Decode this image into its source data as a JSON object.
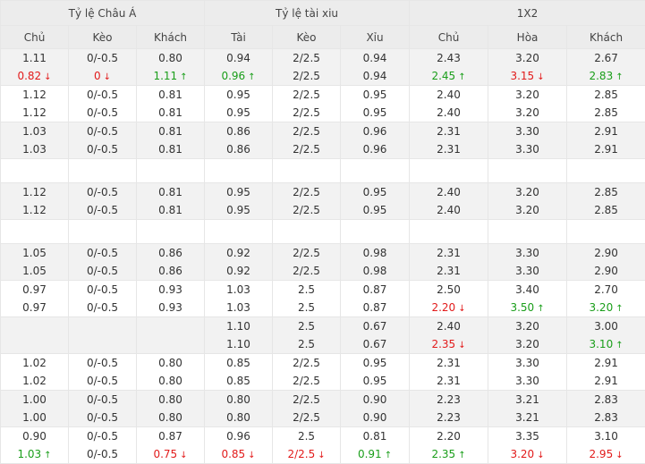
{
  "headers": {
    "group1": "Tỷ lệ Châu Á",
    "group2": "Tỷ lệ tài xiu",
    "group3": "1X2",
    "columns": [
      "Chủ",
      "Kèo",
      "Khách",
      "Tài",
      "Kèo",
      "Xỉu",
      "Chủ",
      "Hòa",
      "Khách"
    ]
  },
  "colors": {
    "up": "#1a9e1a",
    "down": "#e21b1b",
    "row_alt": "#f2f2f2"
  },
  "icons": {
    "up": "arrow-up-icon",
    "down": "arrow-down-icon"
  },
  "rows": [
    {
      "type": "data",
      "bg": "gray",
      "cells": [
        [
          {
            "v": "1.11"
          },
          {
            "v": "0.82",
            "d": "down"
          }
        ],
        [
          {
            "v": "0/-0.5"
          },
          {
            "v": "0",
            "d": "down"
          }
        ],
        [
          {
            "v": "0.80"
          },
          {
            "v": "1.11",
            "d": "up"
          }
        ],
        [
          {
            "v": "0.94"
          },
          {
            "v": "0.96",
            "d": "up"
          }
        ],
        [
          {
            "v": "2/2.5"
          },
          {
            "v": "2/2.5"
          }
        ],
        [
          {
            "v": "0.94"
          },
          {
            "v": "0.94"
          }
        ],
        [
          {
            "v": "2.43"
          },
          {
            "v": "2.45",
            "d": "up"
          }
        ],
        [
          {
            "v": "3.20"
          },
          {
            "v": "3.15",
            "d": "down"
          }
        ],
        [
          {
            "v": "2.67"
          },
          {
            "v": "2.83",
            "d": "up"
          }
        ]
      ]
    },
    {
      "type": "data",
      "bg": "white",
      "cells": [
        [
          {
            "v": "1.12"
          },
          {
            "v": "1.12"
          }
        ],
        [
          {
            "v": "0/-0.5"
          },
          {
            "v": "0/-0.5"
          }
        ],
        [
          {
            "v": "0.81"
          },
          {
            "v": "0.81"
          }
        ],
        [
          {
            "v": "0.95"
          },
          {
            "v": "0.95"
          }
        ],
        [
          {
            "v": "2/2.5"
          },
          {
            "v": "2/2.5"
          }
        ],
        [
          {
            "v": "0.95"
          },
          {
            "v": "0.95"
          }
        ],
        [
          {
            "v": "2.40"
          },
          {
            "v": "2.40"
          }
        ],
        [
          {
            "v": "3.20"
          },
          {
            "v": "3.20"
          }
        ],
        [
          {
            "v": "2.85"
          },
          {
            "v": "2.85"
          }
        ]
      ]
    },
    {
      "type": "data",
      "bg": "gray",
      "cells": [
        [
          {
            "v": "1.03"
          },
          {
            "v": "1.03"
          }
        ],
        [
          {
            "v": "0/-0.5"
          },
          {
            "v": "0/-0.5"
          }
        ],
        [
          {
            "v": "0.81"
          },
          {
            "v": "0.81"
          }
        ],
        [
          {
            "v": "0.86"
          },
          {
            "v": "0.86"
          }
        ],
        [
          {
            "v": "2/2.5"
          },
          {
            "v": "2/2.5"
          }
        ],
        [
          {
            "v": "0.96"
          },
          {
            "v": "0.96"
          }
        ],
        [
          {
            "v": "2.31"
          },
          {
            "v": "2.31"
          }
        ],
        [
          {
            "v": "3.30"
          },
          {
            "v": "3.30"
          }
        ],
        [
          {
            "v": "2.91"
          },
          {
            "v": "2.91"
          }
        ]
      ]
    },
    {
      "type": "blank",
      "bg": "white"
    },
    {
      "type": "data",
      "bg": "gray",
      "cells": [
        [
          {
            "v": "1.12"
          },
          {
            "v": "1.12"
          }
        ],
        [
          {
            "v": "0/-0.5"
          },
          {
            "v": "0/-0.5"
          }
        ],
        [
          {
            "v": "0.81"
          },
          {
            "v": "0.81"
          }
        ],
        [
          {
            "v": "0.95"
          },
          {
            "v": "0.95"
          }
        ],
        [
          {
            "v": "2/2.5"
          },
          {
            "v": "2/2.5"
          }
        ],
        [
          {
            "v": "0.95"
          },
          {
            "v": "0.95"
          }
        ],
        [
          {
            "v": "2.40"
          },
          {
            "v": "2.40"
          }
        ],
        [
          {
            "v": "3.20"
          },
          {
            "v": "3.20"
          }
        ],
        [
          {
            "v": "2.85"
          },
          {
            "v": "2.85"
          }
        ]
      ]
    },
    {
      "type": "blank",
      "bg": "white"
    },
    {
      "type": "data",
      "bg": "gray",
      "cells": [
        [
          {
            "v": "1.05"
          },
          {
            "v": "1.05"
          }
        ],
        [
          {
            "v": "0/-0.5"
          },
          {
            "v": "0/-0.5"
          }
        ],
        [
          {
            "v": "0.86"
          },
          {
            "v": "0.86"
          }
        ],
        [
          {
            "v": "0.92"
          },
          {
            "v": "0.92"
          }
        ],
        [
          {
            "v": "2/2.5"
          },
          {
            "v": "2/2.5"
          }
        ],
        [
          {
            "v": "0.98"
          },
          {
            "v": "0.98"
          }
        ],
        [
          {
            "v": "2.31"
          },
          {
            "v": "2.31"
          }
        ],
        [
          {
            "v": "3.30"
          },
          {
            "v": "3.30"
          }
        ],
        [
          {
            "v": "2.90"
          },
          {
            "v": "2.90"
          }
        ]
      ]
    },
    {
      "type": "data",
      "bg": "white",
      "cells": [
        [
          {
            "v": "0.97"
          },
          {
            "v": "0.97"
          }
        ],
        [
          {
            "v": "0/-0.5"
          },
          {
            "v": "0/-0.5"
          }
        ],
        [
          {
            "v": "0.93"
          },
          {
            "v": "0.93"
          }
        ],
        [
          {
            "v": "1.03"
          },
          {
            "v": "1.03"
          }
        ],
        [
          {
            "v": "2.5"
          },
          {
            "v": "2.5"
          }
        ],
        [
          {
            "v": "0.87"
          },
          {
            "v": "0.87"
          }
        ],
        [
          {
            "v": "2.50"
          },
          {
            "v": "2.20",
            "d": "down"
          }
        ],
        [
          {
            "v": "3.40"
          },
          {
            "v": "3.50",
            "d": "up"
          }
        ],
        [
          {
            "v": "2.70"
          },
          {
            "v": "3.20",
            "d": "up"
          }
        ]
      ]
    },
    {
      "type": "data",
      "bg": "gray",
      "cells": [
        [],
        [],
        [],
        [
          {
            "v": "1.10"
          },
          {
            "v": "1.10"
          }
        ],
        [
          {
            "v": "2.5"
          },
          {
            "v": "2.5"
          }
        ],
        [
          {
            "v": "0.67"
          },
          {
            "v": "0.67"
          }
        ],
        [
          {
            "v": "2.40"
          },
          {
            "v": "2.35",
            "d": "down"
          }
        ],
        [
          {
            "v": "3.20"
          },
          {
            "v": "3.20"
          }
        ],
        [
          {
            "v": "3.00"
          },
          {
            "v": "3.10",
            "d": "up"
          }
        ]
      ]
    },
    {
      "type": "data",
      "bg": "white",
      "cells": [
        [
          {
            "v": "1.02"
          },
          {
            "v": "1.02"
          }
        ],
        [
          {
            "v": "0/-0.5"
          },
          {
            "v": "0/-0.5"
          }
        ],
        [
          {
            "v": "0.80"
          },
          {
            "v": "0.80"
          }
        ],
        [
          {
            "v": "0.85"
          },
          {
            "v": "0.85"
          }
        ],
        [
          {
            "v": "2/2.5"
          },
          {
            "v": "2/2.5"
          }
        ],
        [
          {
            "v": "0.95"
          },
          {
            "v": "0.95"
          }
        ],
        [
          {
            "v": "2.31"
          },
          {
            "v": "2.31"
          }
        ],
        [
          {
            "v": "3.30"
          },
          {
            "v": "3.30"
          }
        ],
        [
          {
            "v": "2.91"
          },
          {
            "v": "2.91"
          }
        ]
      ]
    },
    {
      "type": "data",
      "bg": "gray",
      "cells": [
        [
          {
            "v": "1.00"
          },
          {
            "v": "1.00"
          }
        ],
        [
          {
            "v": "0/-0.5"
          },
          {
            "v": "0/-0.5"
          }
        ],
        [
          {
            "v": "0.80"
          },
          {
            "v": "0.80"
          }
        ],
        [
          {
            "v": "0.80"
          },
          {
            "v": "0.80"
          }
        ],
        [
          {
            "v": "2/2.5"
          },
          {
            "v": "2/2.5"
          }
        ],
        [
          {
            "v": "0.90"
          },
          {
            "v": "0.90"
          }
        ],
        [
          {
            "v": "2.23"
          },
          {
            "v": "2.23"
          }
        ],
        [
          {
            "v": "3.21"
          },
          {
            "v": "3.21"
          }
        ],
        [
          {
            "v": "2.83"
          },
          {
            "v": "2.83"
          }
        ]
      ]
    },
    {
      "type": "data",
      "bg": "white",
      "cells": [
        [
          {
            "v": "0.90"
          },
          {
            "v": "1.03",
            "d": "up"
          }
        ],
        [
          {
            "v": "0/-0.5"
          },
          {
            "v": "0/-0.5"
          }
        ],
        [
          {
            "v": "0.87"
          },
          {
            "v": "0.75",
            "d": "down"
          }
        ],
        [
          {
            "v": "0.96"
          },
          {
            "v": "0.85",
            "d": "down"
          }
        ],
        [
          {
            "v": "2.5"
          },
          {
            "v": "2/2.5",
            "d": "down"
          }
        ],
        [
          {
            "v": "0.81"
          },
          {
            "v": "0.91",
            "d": "up"
          }
        ],
        [
          {
            "v": "2.20"
          },
          {
            "v": "2.35",
            "d": "up"
          }
        ],
        [
          {
            "v": "3.35"
          },
          {
            "v": "3.20",
            "d": "down"
          }
        ],
        [
          {
            "v": "3.10"
          },
          {
            "v": "2.95",
            "d": "down"
          }
        ]
      ]
    }
  ]
}
